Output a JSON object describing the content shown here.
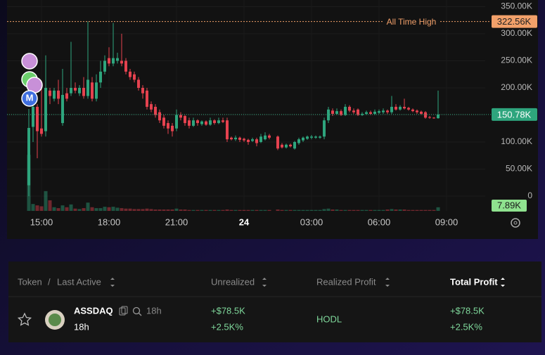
{
  "chart_data": {
    "type": "candlestick",
    "x": [
      14.4375,
      14.625,
      14.8125,
      15,
      15.1875,
      15.375,
      15.5625,
      15.75,
      15.9375,
      16.125,
      16.3125,
      16.5,
      16.6875,
      16.875,
      17.0625,
      17.25,
      17.4375,
      17.625,
      17.8125,
      18,
      18.1875,
      18.375,
      18.5625,
      18.75,
      18.9375,
      19.125,
      19.3125,
      19.5,
      19.6875,
      19.875,
      20.0625,
      20.25,
      20.4375,
      20.625,
      20.8125,
      21,
      21.1875,
      21.375,
      21.5625,
      21.75,
      21.9375,
      22.125,
      22.3125,
      22.5,
      22.6875,
      22.875,
      23.0625,
      23.25,
      23.4375,
      23.625,
      23.8125,
      24,
      24.1875,
      24.375,
      24.5625,
      24.75,
      24.9375,
      25.125,
      25.5,
      25.6875,
      25.875,
      26.0625,
      26.25,
      26.4375,
      26.625,
      26.8125,
      27,
      27.1875,
      27.375,
      27.5625,
      27.75,
      27.9375,
      28.125,
      28.3125,
      28.5,
      28.6875,
      28.875,
      29.0625,
      29.25,
      29.4375,
      29.625,
      29.8125,
      30,
      30.1875,
      30.375,
      30.5625,
      30.75,
      30.9375,
      31.125,
      31.3125,
      31.5,
      31.6875,
      31.875,
      32.0625,
      32.25,
      32.4375,
      32.625
    ],
    "open": [
      20,
      128,
      165,
      125,
      120,
      195,
      180,
      195,
      135,
      190,
      190,
      200,
      190,
      200,
      185,
      210,
      180,
      210,
      230,
      255,
      245,
      250,
      250,
      250,
      230,
      225,
      215,
      200,
      195,
      170,
      165,
      155,
      145,
      135,
      130,
      125,
      150,
      148,
      140,
      130,
      140,
      133,
      138,
      132,
      140,
      135,
      140,
      140,
      108,
      105,
      108,
      106,
      104,
      102,
      105,
      100,
      105,
      112,
      110,
      95,
      90,
      95,
      88,
      98,
      103,
      106,
      108,
      108,
      108,
      110,
      140,
      158,
      152,
      157,
      150,
      165,
      158,
      160,
      150,
      152,
      155,
      152,
      154,
      155,
      158,
      155,
      165,
      160,
      165,
      163,
      160,
      158,
      156,
      155,
      146,
      145,
      144
    ],
    "high": [
      161,
      175,
      170,
      200,
      260,
      200,
      200,
      215,
      235,
      200,
      285,
      210,
      205,
      220,
      322.56,
      220,
      225,
      250,
      260,
      275,
      320,
      265,
      300,
      255,
      235,
      230,
      220,
      205,
      200,
      175,
      170,
      160,
      150,
      140,
      135,
      160,
      155,
      150,
      145,
      145,
      142,
      140,
      140,
      145,
      142,
      145,
      145,
      145,
      110,
      112,
      110,
      108,
      106,
      108,
      108,
      115,
      118,
      115,
      112,
      98,
      97,
      97,
      102,
      108,
      110,
      112,
      113,
      112,
      112,
      145,
      165,
      162,
      162,
      160,
      170,
      168,
      162,
      162,
      155,
      158,
      158,
      160,
      160,
      162,
      160,
      185,
      170,
      168,
      180,
      165,
      162,
      160,
      158,
      157,
      148,
      146,
      195
    ],
    "low": [
      0,
      100,
      70,
      110,
      110,
      170,
      175,
      170,
      130,
      175,
      185,
      190,
      185,
      180,
      180,
      175,
      175,
      200,
      225,
      240,
      240,
      245,
      240,
      225,
      215,
      210,
      195,
      180,
      160,
      155,
      145,
      135,
      125,
      115,
      110,
      120,
      140,
      130,
      125,
      128,
      130,
      130,
      130,
      130,
      132,
      133,
      135,
      100,
      103,
      102,
      100,
      100,
      95,
      100,
      92,
      98,
      103,
      105,
      85,
      88,
      88,
      90,
      86,
      95,
      100,
      104,
      105,
      106,
      106,
      105,
      135,
      148,
      150,
      148,
      148,
      155,
      152,
      148,
      148,
      150,
      150,
      150,
      152,
      152,
      152,
      152,
      158,
      158,
      160,
      158,
      155,
      152,
      150,
      143,
      143,
      143,
      143
    ],
    "close": [
      126,
      165,
      120,
      115,
      200,
      185,
      195,
      180,
      187,
      180,
      200,
      195,
      200,
      185,
      215,
      180,
      210,
      230,
      250,
      245,
      255,
      255,
      245,
      230,
      220,
      215,
      200,
      190,
      165,
      160,
      150,
      140,
      130,
      125,
      120,
      150,
      145,
      135,
      130,
      140,
      135,
      138,
      132,
      140,
      135,
      140,
      137,
      105,
      105,
      108,
      104,
      103,
      100,
      105,
      98,
      110,
      112,
      108,
      88,
      90,
      95,
      92,
      100,
      105,
      108,
      110,
      110,
      110,
      110,
      140,
      160,
      152,
      157,
      150,
      165,
      158,
      155,
      150,
      152,
      155,
      152,
      156,
      157,
      158,
      155,
      165,
      160,
      165,
      162,
      160,
      157,
      155,
      152,
      145,
      145,
      144,
      150.78
    ],
    "volume": [
      122,
      15,
      12,
      10,
      43,
      23,
      8,
      6,
      12,
      8,
      14,
      5,
      4,
      6,
      18,
      8,
      6,
      6,
      9,
      8,
      9,
      7,
      6,
      5,
      5,
      4,
      4,
      4,
      5,
      4,
      3,
      3,
      3,
      3,
      3,
      5,
      3,
      3,
      2,
      2,
      2,
      2,
      2,
      2,
      2,
      2,
      2,
      3,
      2,
      2,
      2,
      2,
      2,
      2,
      2,
      2,
      2,
      2,
      3,
      2,
      2,
      2,
      2,
      2,
      2,
      2,
      2,
      2,
      2,
      4,
      5,
      3,
      3,
      2,
      2,
      2,
      2,
      2,
      2,
      2,
      2,
      2,
      2,
      2,
      3,
      4,
      3,
      3,
      3,
      2,
      2,
      2,
      2,
      2,
      2,
      2,
      7.89
    ],
    "up_color": "#2ea57d",
    "down_color": "#e5424f",
    "xlim": [
      13.46875,
      34.71875
    ],
    "xticks": [
      {
        "value": 15,
        "label": "15:00"
      },
      {
        "value": 18,
        "label": "18:00"
      },
      {
        "value": 21,
        "label": "21:00"
      },
      24,
      {
        "value": 27,
        "label": "03:00"
      },
      {
        "value": 30,
        "label": "06:00"
      },
      {
        "value": 33,
        "label": "09:00"
      }
    ],
    "xtick_labels_override": null,
    "ylim": [
      -27.27,
      362.34
    ],
    "yticks": [
      0,
      {
        "value": 50,
        "label": "50.00K"
      },
      {
        "value": 100,
        "label": "100.00K"
      },
      {
        "value": 150,
        "label": "150.00K"
      },
      {
        "value": 200,
        "label": "200.00K"
      },
      {
        "value": 250,
        "label": "250.00K"
      },
      {
        "value": 300,
        "label": "300.00K"
      },
      {
        "value": 350,
        "label": "350.00K"
      }
    ],
    "vlim": [
      0,
      130
    ],
    "grid": true,
    "ath": {
      "label": "All Time High",
      "value": 322.56,
      "value_label": "322.56K",
      "color": "#f2a06a"
    },
    "last_price": {
      "value": 150.78,
      "value_label": "150.78K"
    },
    "volume_label": "7.89K",
    "marker_text": "M"
  },
  "table": {
    "headers": [
      "Token",
      "/",
      "Last Active",
      "Unrealized",
      "Realized Profit",
      "Total Profit"
    ],
    "rows": [
      {
        "token": "ASSDAQ",
        "age": "18h",
        "last_active": "18h",
        "unrealized": "+$78.5K",
        "unrealized_pct": "+2.5K%",
        "realized": "HODL",
        "total": "+$78.5K",
        "total_pct": "+2.5K%"
      }
    ]
  }
}
